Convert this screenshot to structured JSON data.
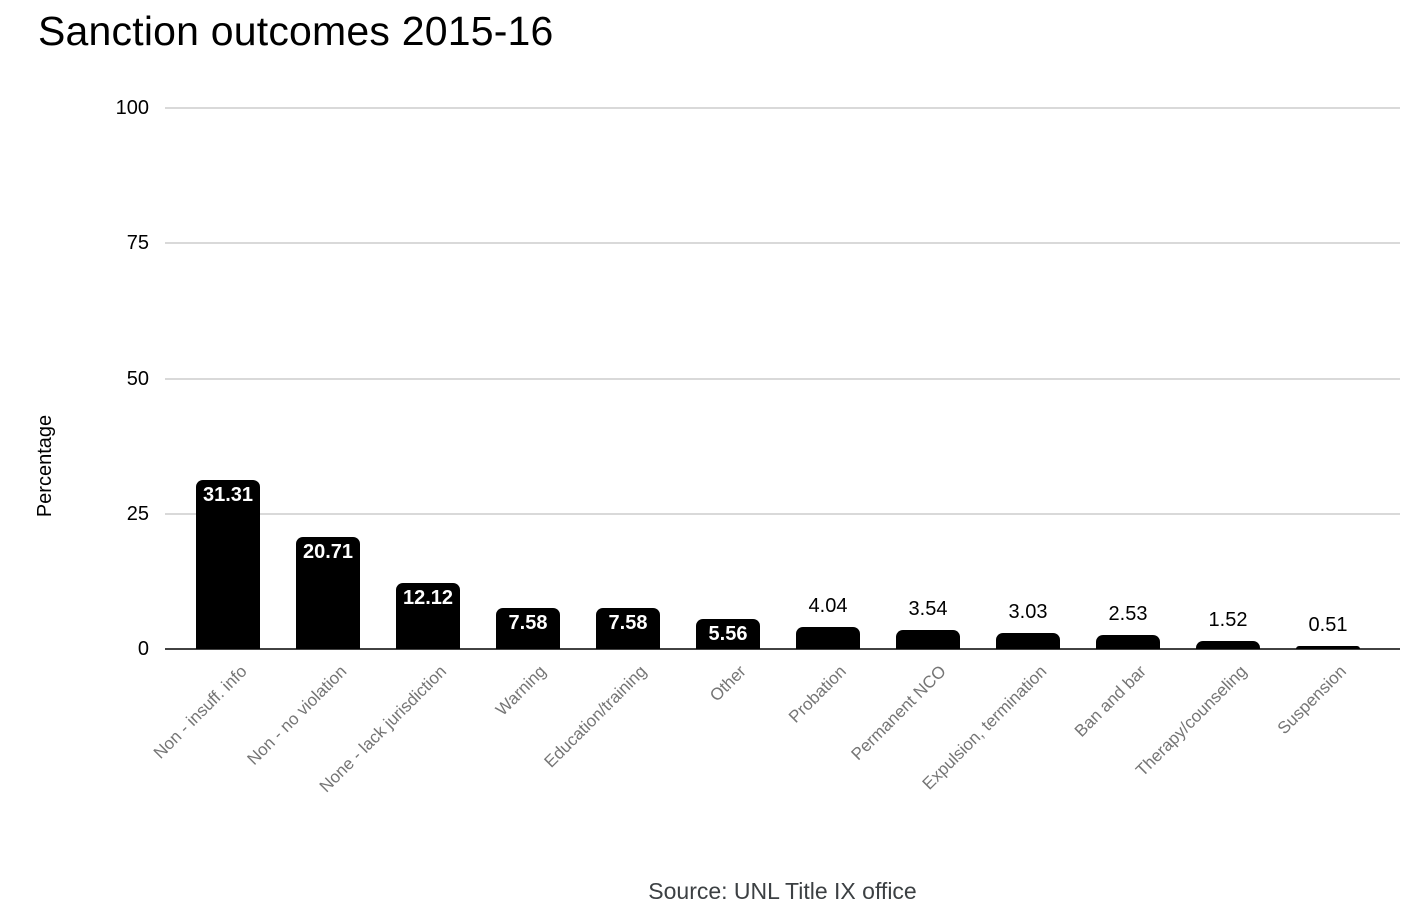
{
  "title": "Sanction outcomes 2015-16",
  "source_caption": "Source: UNL Title IX office",
  "chart_data": {
    "type": "bar",
    "title": "Sanction outcomes 2015-16",
    "xlabel": "",
    "ylabel": "Percentage",
    "ylim": [
      0,
      100
    ],
    "yticks": [
      0,
      25,
      50,
      75,
      100
    ],
    "grid": true,
    "legend": "none",
    "annotation": "Source: UNL Title IX office",
    "categories": [
      "Non - insuff. info",
      "Non - no violation",
      "None - lack jurisdiction",
      "Warning",
      "Education/training",
      "Other",
      "Probation",
      "Permanent NCO",
      "Expulsion, termination",
      "Ban and bar",
      "Therapy/counseling",
      "Suspension"
    ],
    "values": [
      31.31,
      20.71,
      12.12,
      7.58,
      7.58,
      5.56,
      4.04,
      3.54,
      3.03,
      2.53,
      1.52,
      0.51
    ],
    "value_label_decimals": 2,
    "layout": {
      "value_label_inside_min": 5,
      "category_label_rotation_deg": -45
    }
  },
  "colors": {
    "bar": "#000000",
    "grid": "#d9d9d9",
    "axis": "#424242",
    "tick_label": "#000000",
    "category_label": "#757575",
    "value_inside": "#ffffff",
    "value_outside": "#000000",
    "source": "#3c4043"
  }
}
